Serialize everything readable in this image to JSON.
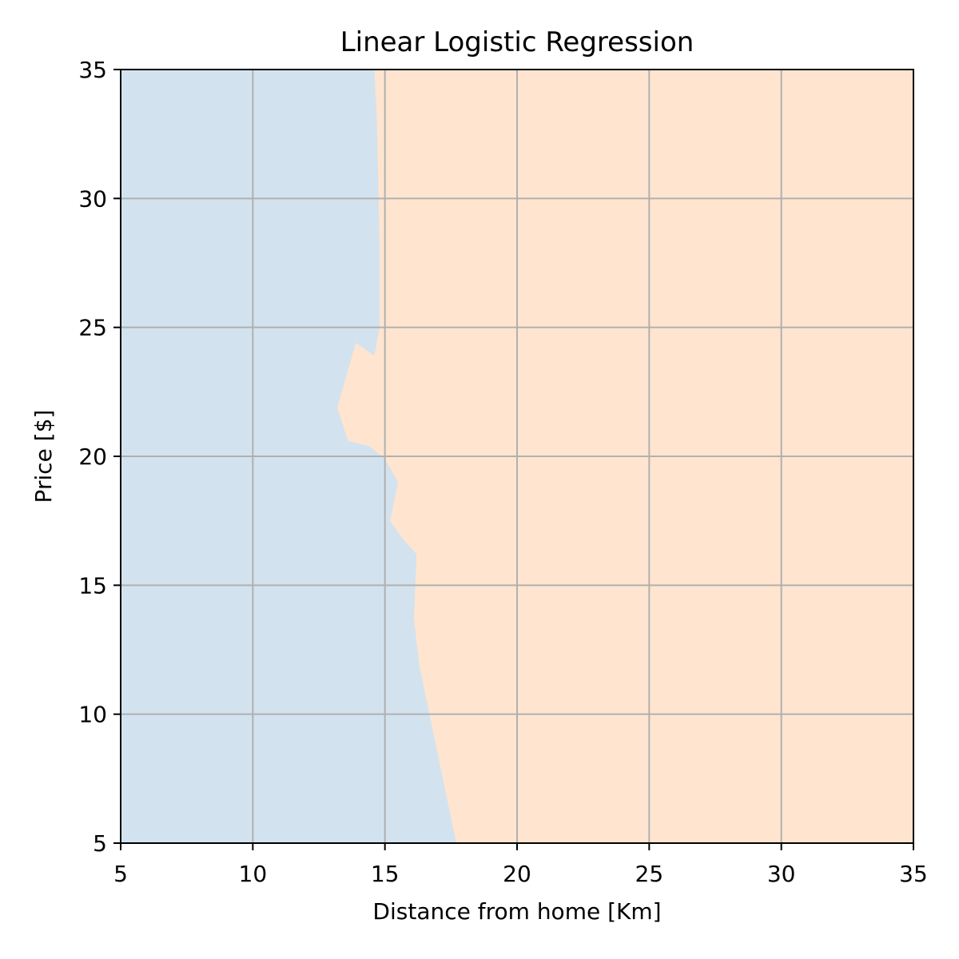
{
  "chart_data": {
    "type": "area",
    "title": "Linear Logistic Regression",
    "xlabel": "Distance from home [Km]",
    "ylabel": "Price [$]",
    "xlim": [
      5,
      35
    ],
    "ylim": [
      5,
      35
    ],
    "xticks": [
      5,
      10,
      15,
      20,
      25,
      30,
      35
    ],
    "yticks": [
      5,
      10,
      15,
      20,
      25,
      30,
      35
    ],
    "grid": true,
    "regions": [
      {
        "class": "left",
        "color": "#d2e3ef"
      },
      {
        "class": "right",
        "color": "#ffe5cf"
      }
    ],
    "decision_boundary": [
      [
        17.7,
        5.0
      ],
      [
        16.3,
        11.9
      ],
      [
        16.1,
        13.7
      ],
      [
        16.2,
        16.2
      ],
      [
        15.6,
        16.9
      ],
      [
        15.2,
        17.5
      ],
      [
        15.5,
        19.0
      ],
      [
        15.0,
        19.9
      ],
      [
        14.4,
        20.4
      ],
      [
        13.6,
        20.6
      ],
      [
        13.2,
        21.9
      ],
      [
        13.9,
        24.4
      ],
      [
        14.6,
        23.9
      ],
      [
        14.8,
        25.0
      ],
      [
        14.8,
        28.0
      ],
      [
        14.7,
        33.0
      ],
      [
        14.6,
        35.0
      ]
    ]
  }
}
